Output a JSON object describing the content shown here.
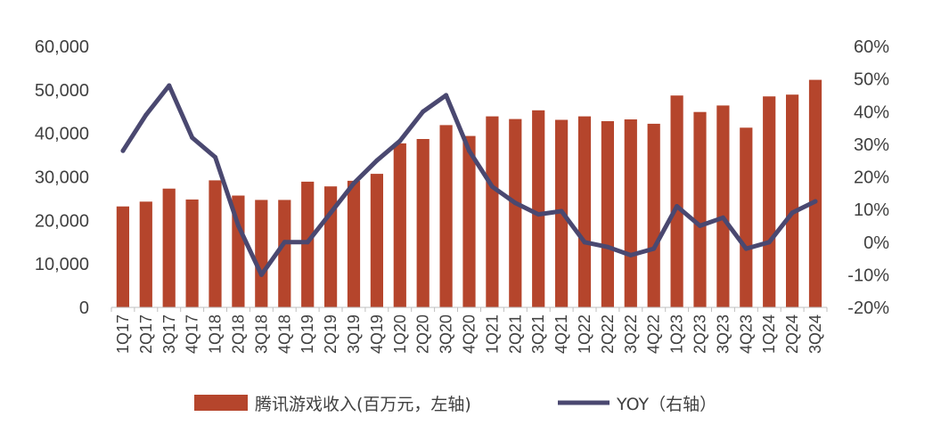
{
  "chart_data": {
    "type": "bar+line",
    "title": "",
    "categories": [
      "1Q17",
      "2Q17",
      "3Q17",
      "4Q17",
      "1Q18",
      "2Q18",
      "3Q18",
      "4Q18",
      "1Q19",
      "2Q19",
      "3Q19",
      "4Q19",
      "1Q20",
      "2Q20",
      "3Q20",
      "4Q20",
      "1Q21",
      "2Q21",
      "3Q21",
      "4Q21",
      "1Q22",
      "2Q22",
      "3Q22",
      "4Q22",
      "1Q23",
      "2Q23",
      "3Q23",
      "4Q23",
      "1Q24",
      "2Q24",
      "3Q24"
    ],
    "series": [
      {
        "name": "腾讯游戏收入(百万元，左轴)",
        "type": "bar",
        "axis": "left",
        "color": "#b5452c",
        "values": [
          23200,
          24300,
          27300,
          24800,
          29200,
          25700,
          24700,
          24700,
          28900,
          27800,
          29100,
          30700,
          37700,
          38700,
          41900,
          39400,
          43900,
          43300,
          45300,
          43100,
          43900,
          42800,
          43200,
          42200,
          48700,
          44900,
          46400,
          41300,
          48500,
          48900,
          52300
        ]
      },
      {
        "name": "YOY（右轴）",
        "type": "line",
        "axis": "right",
        "color": "#4a4870",
        "values": [
          28,
          39,
          48,
          32,
          26,
          5,
          -10,
          0,
          0,
          9,
          18,
          25,
          31,
          40,
          45,
          28,
          17,
          12,
          8.5,
          9.5,
          0,
          -1.5,
          -4,
          -2,
          11,
          5,
          7.5,
          -2,
          0,
          9,
          12.5
        ]
      }
    ],
    "left_axis": {
      "min": 0,
      "max": 60000,
      "step": 10000,
      "ticks": [
        "0",
        "10,000",
        "20,000",
        "30,000",
        "40,000",
        "50,000",
        "60,000"
      ]
    },
    "right_axis": {
      "min": -20,
      "max": 60,
      "step": 10,
      "ticks": [
        "-20%",
        "-10%",
        "0%",
        "10%",
        "20%",
        "30%",
        "40%",
        "50%",
        "60%"
      ]
    },
    "grid": false,
    "legend_position": "bottom"
  }
}
